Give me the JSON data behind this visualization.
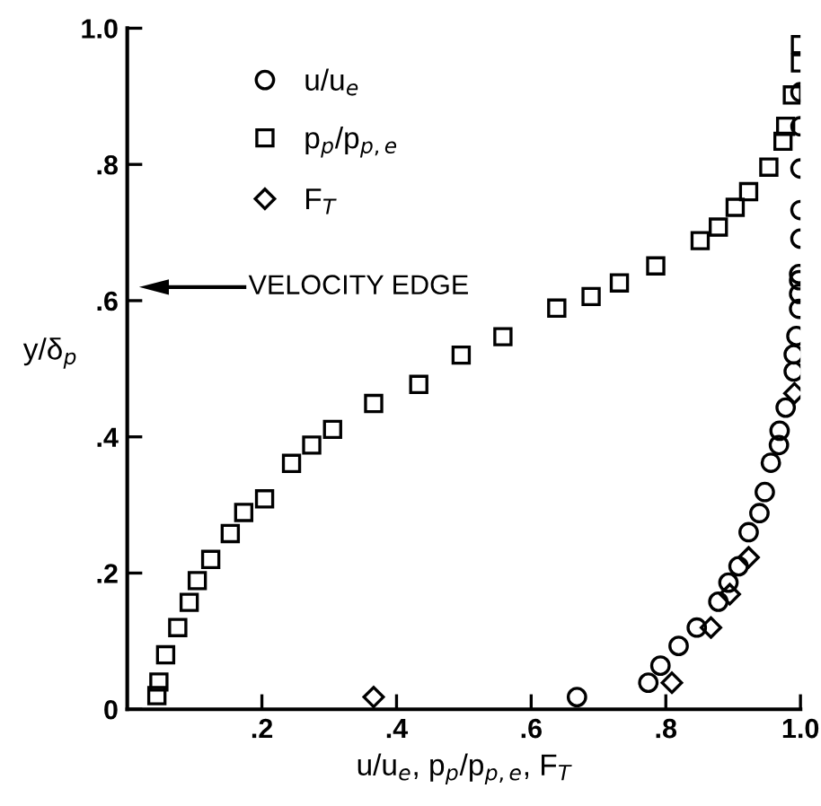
{
  "chart_data": {
    "type": "scatter",
    "xlabel": "u/u$_{e}$, p$_{p}$/p$_{p,e}$, F$_{T}$",
    "ylabel": "y/δ$_{p}$",
    "xlim": [
      0,
      1.0
    ],
    "ylim": [
      0,
      1.0
    ],
    "xticks": [
      {
        "value": 0.2,
        "label": ".2"
      },
      {
        "value": 0.4,
        "label": ".4"
      },
      {
        "value": 0.6,
        "label": ".6"
      },
      {
        "value": 0.8,
        "label": ".8"
      },
      {
        "value": 1.0,
        "label": "1.0"
      }
    ],
    "yticks": [
      0,
      {
        "value": 0.2,
        "label": ".2"
      },
      {
        "value": 0.4,
        "label": ".4"
      },
      {
        "value": 0.6,
        "label": ".6"
      },
      {
        "value": 0.8,
        "label": ".8"
      },
      {
        "value": 1.0,
        "label": "1.0"
      }
    ],
    "grid": false,
    "legend": "top left",
    "annotations": [
      "VELOCITY EDGE"
    ],
    "series": [
      {
        "name": "u/u$_{e}$",
        "color": "#000000",
        "marker": "circle",
        "x": [
          1.0,
          1.0,
          1.0,
          1.0,
          1.0,
          0.998,
          0.998,
          0.998,
          0.998,
          0.994,
          0.99,
          0.99,
          0.978,
          0.969,
          0.968,
          0.956,
          0.947,
          0.939,
          0.923,
          0.908,
          0.893,
          0.878,
          0.846,
          0.819,
          0.792,
          0.774,
          0.668
        ],
        "values": [
          0.906,
          0.856,
          0.794,
          0.733,
          0.691,
          0.639,
          0.63,
          0.61,
          0.588,
          0.548,
          0.521,
          0.496,
          0.443,
          0.409,
          0.388,
          0.362,
          0.319,
          0.288,
          0.26,
          0.21,
          0.186,
          0.158,
          0.12,
          0.093,
          0.064,
          0.039,
          0.018
        ]
      },
      {
        "name": "p$_{p}$/p$_{p,e}$",
        "color": "#000000",
        "marker": "square",
        "x": [
          0.044,
          0.047,
          0.057,
          0.075,
          0.092,
          0.104,
          0.124,
          0.153,
          0.173,
          0.204,
          0.244,
          0.274,
          0.305,
          0.366,
          0.433,
          0.496,
          0.558,
          0.638,
          0.689,
          0.731,
          0.785,
          0.851,
          0.878,
          0.903,
          0.923,
          0.953,
          0.974,
          0.978,
          0.988,
          1.0,
          1.0
        ],
        "values": [
          0.02,
          0.04,
          0.08,
          0.12,
          0.157,
          0.189,
          0.22,
          0.258,
          0.289,
          0.309,
          0.361,
          0.388,
          0.411,
          0.449,
          0.477,
          0.52,
          0.547,
          0.589,
          0.606,
          0.626,
          0.651,
          0.688,
          0.708,
          0.737,
          0.76,
          0.796,
          0.834,
          0.856,
          0.902,
          0.976,
          0.949
        ]
      },
      {
        "name": "F$_{T}$",
        "color": "#000000",
        "marker": "diamond",
        "x": [
          0.991,
          0.923,
          0.895,
          0.867,
          0.809,
          0.366
        ],
        "values": [
          0.464,
          0.223,
          0.169,
          0.12,
          0.039,
          0.018
        ]
      }
    ]
  }
}
